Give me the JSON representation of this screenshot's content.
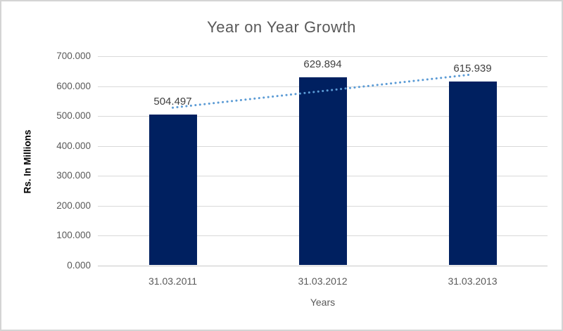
{
  "chart_data": {
    "type": "bar",
    "title": "Year on Year Growth",
    "categories": [
      "31.03.2011",
      "31.03.2012",
      "31.03.2013"
    ],
    "values": [
      504.497,
      629.894,
      615.939
    ],
    "data_labels": [
      "504.497",
      "629.894",
      "615.939"
    ],
    "xlabel": "Years",
    "ylabel": "Rs. In Millions",
    "ylim": [
      0,
      700
    ],
    "ytick_step": 100,
    "ytick_labels": [
      "0.000",
      "100.000",
      "200.000",
      "300.000",
      "400.000",
      "500.000",
      "600.000",
      "700.000"
    ],
    "grid": true,
    "legend": "none",
    "trendline": {
      "type": "linear",
      "style": "dotted"
    },
    "colors": {
      "bar": "#002060",
      "trendline": "#5b9bd5",
      "gridline": "#d9d9d9",
      "axis_line": "#c9c9c9",
      "tick_label": "#595959",
      "title": "#595959",
      "data_label": "#404040",
      "y_axis_title": "#000000",
      "frame_border": "#d4d4d4",
      "background": "#ffffff"
    }
  }
}
